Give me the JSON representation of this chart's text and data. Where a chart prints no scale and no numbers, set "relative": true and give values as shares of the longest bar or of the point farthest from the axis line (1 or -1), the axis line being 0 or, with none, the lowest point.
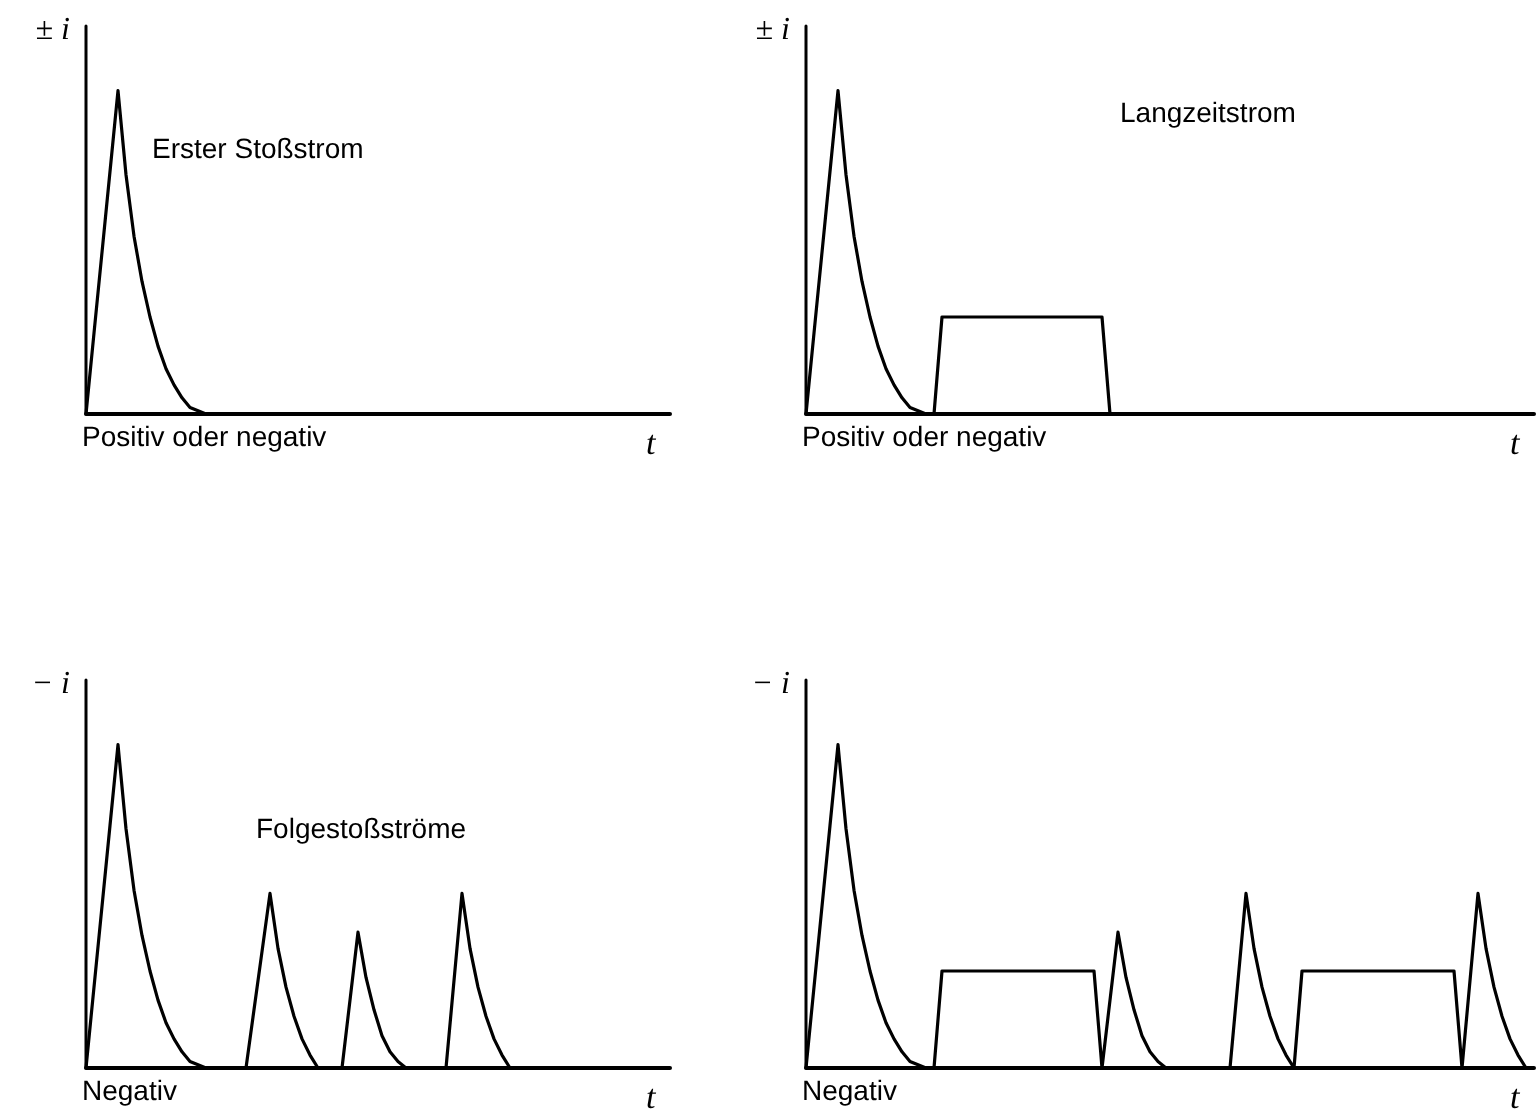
{
  "chart_data": [
    {
      "type": "line",
      "relative": true,
      "color": "#000000",
      "xlabel": "t",
      "ylabel": "± i",
      "annotations": [
        "Erster Stoßstrom",
        "Positiv oder negativ"
      ],
      "categories": [
        null,
        null,
        null,
        null,
        null,
        null,
        null,
        null,
        null,
        null,
        null,
        null,
        null,
        null,
        null,
        null,
        null,
        null,
        null,
        null,
        null,
        null,
        null,
        null,
        null,
        null,
        null,
        null,
        null,
        null,
        null,
        null,
        null,
        null,
        null,
        null,
        null,
        null,
        null,
        null,
        null,
        null,
        null,
        null,
        null,
        null,
        null,
        null,
        null,
        null,
        null,
        null,
        null,
        null,
        null,
        null,
        null,
        null,
        null,
        null,
        null,
        null,
        null,
        null,
        null,
        null,
        null,
        null,
        null,
        null,
        null,
        null,
        null,
        null
      ],
      "values": [
        0,
        0.25,
        0.5,
        0.75,
        1,
        0.74,
        0.55,
        0.41,
        0.3,
        0.21,
        0.14,
        0.09,
        0.05,
        0.02,
        0.01,
        0,
        0,
        0,
        0,
        0,
        0,
        0,
        0,
        0,
        0,
        0,
        0,
        0,
        0,
        0,
        0,
        0,
        0,
        0,
        0,
        0,
        0,
        0,
        0,
        0,
        0,
        0,
        0,
        0,
        0,
        0,
        0,
        0,
        0,
        0,
        0,
        0,
        0,
        0,
        0,
        0,
        0,
        0,
        0,
        0,
        0,
        0,
        0,
        0,
        0,
        0,
        0,
        0,
        0,
        0,
        0,
        0,
        0,
        0
      ]
    },
    {
      "type": "line",
      "relative": true,
      "color": "#000000",
      "xlabel": "t",
      "ylabel": "± i",
      "annotations": [
        "Langzeitstrom",
        "Positiv oder negativ"
      ],
      "categories": [
        null,
        null,
        null,
        null,
        null,
        null,
        null,
        null,
        null,
        null,
        null,
        null,
        null,
        null,
        null,
        null,
        null,
        null,
        null,
        null,
        null,
        null,
        null,
        null,
        null,
        null,
        null,
        null,
        null,
        null,
        null,
        null,
        null,
        null,
        null,
        null,
        null,
        null,
        null,
        null,
        null,
        null,
        null,
        null,
        null,
        null,
        null,
        null,
        null,
        null,
        null,
        null,
        null,
        null,
        null,
        null,
        null,
        null,
        null,
        null,
        null,
        null,
        null,
        null,
        null,
        null,
        null,
        null,
        null,
        null,
        null,
        null,
        null,
        null,
        null,
        null,
        null,
        null,
        null,
        null,
        null,
        null,
        null,
        null,
        null,
        null,
        null,
        null,
        null,
        null,
        null,
        null
      ],
      "values": [
        0,
        0.25,
        0.5,
        0.75,
        1,
        0.74,
        0.55,
        0.41,
        0.3,
        0.21,
        0.14,
        0.09,
        0.05,
        0.02,
        0.01,
        0,
        0,
        0.3,
        0.3,
        0.3,
        0.3,
        0.3,
        0.3,
        0.3,
        0.3,
        0.3,
        0.3,
        0.3,
        0.3,
        0.3,
        0.3,
        0.3,
        0.3,
        0.3,
        0.3,
        0.3,
        0.3,
        0.3,
        0,
        0,
        0,
        0,
        0,
        0,
        0,
        0,
        0,
        0,
        0,
        0,
        0,
        0,
        0,
        0,
        0,
        0,
        0,
        0,
        0,
        0,
        0,
        0,
        0,
        0,
        0,
        0,
        0,
        0,
        0,
        0,
        0,
        0,
        0,
        0,
        0,
        0,
        0,
        0,
        0,
        0,
        0,
        0,
        0,
        0,
        0,
        0,
        0,
        0,
        0,
        0,
        0,
        0
      ]
    },
    {
      "type": "line",
      "relative": true,
      "color": "#000000",
      "xlabel": "t",
      "ylabel": "− i",
      "annotations": [
        "Folgestoßströme",
        "Negativ"
      ],
      "categories": [
        null,
        null,
        null,
        null,
        null,
        null,
        null,
        null,
        null,
        null,
        null,
        null,
        null,
        null,
        null,
        null,
        null,
        null,
        null,
        null,
        null,
        null,
        null,
        null,
        null,
        null,
        null,
        null,
        null,
        null,
        null,
        null,
        null,
        null,
        null,
        null,
        null,
        null,
        null,
        null,
        null,
        null,
        null,
        null,
        null,
        null,
        null,
        null,
        null,
        null,
        null,
        null,
        null,
        null,
        null,
        null,
        null,
        null,
        null,
        null,
        null,
        null,
        null,
        null,
        null,
        null,
        null,
        null,
        null,
        null,
        null,
        null,
        null,
        null
      ],
      "values": [
        0,
        0.25,
        0.5,
        0.75,
        1,
        0.74,
        0.55,
        0.41,
        0.3,
        0.21,
        0.14,
        0.09,
        0.05,
        0.02,
        0.01,
        0,
        0,
        0,
        0,
        0,
        0,
        0.18,
        0.36,
        0.54,
        0.37,
        0.25,
        0.16,
        0.09,
        0.04,
        0,
        0,
        0,
        0,
        0.21,
        0.42,
        0.28,
        0.18,
        0.1,
        0.05,
        0.02,
        0,
        0,
        0,
        0,
        0,
        0,
        0.27,
        0.54,
        0.37,
        0.25,
        0.16,
        0.09,
        0.04,
        0,
        0,
        0,
        0,
        0,
        0,
        0,
        0,
        0,
        0,
        0,
        0,
        0,
        0,
        0,
        0,
        0,
        0,
        0,
        0,
        0
      ]
    },
    {
      "type": "line",
      "relative": true,
      "color": "#000000",
      "xlabel": "t",
      "ylabel": "− i",
      "annotations": [
        "Negativ"
      ],
      "categories": [
        null,
        null,
        null,
        null,
        null,
        null,
        null,
        null,
        null,
        null,
        null,
        null,
        null,
        null,
        null,
        null,
        null,
        null,
        null,
        null,
        null,
        null,
        null,
        null,
        null,
        null,
        null,
        null,
        null,
        null,
        null,
        null,
        null,
        null,
        null,
        null,
        null,
        null,
        null,
        null,
        null,
        null,
        null,
        null,
        null,
        null,
        null,
        null,
        null,
        null,
        null,
        null,
        null,
        null,
        null,
        null,
        null,
        null,
        null,
        null,
        null,
        null,
        null,
        null,
        null,
        null,
        null,
        null,
        null,
        null,
        null,
        null,
        null,
        null,
        null,
        null,
        null,
        null,
        null,
        null,
        null,
        null,
        null,
        null,
        null,
        null,
        null,
        null,
        null,
        null,
        null,
        null
      ],
      "values": [
        0,
        0.25,
        0.5,
        0.75,
        1,
        0.74,
        0.55,
        0.41,
        0.3,
        0.21,
        0.14,
        0.09,
        0.05,
        0.02,
        0.01,
        0,
        0,
        0.3,
        0.3,
        0.3,
        0.3,
        0.3,
        0.3,
        0.3,
        0.3,
        0.3,
        0.3,
        0.3,
        0.3,
        0.3,
        0.3,
        0.3,
        0.3,
        0.3,
        0.3,
        0.3,
        0.3,
        0,
        0.21,
        0.42,
        0.28,
        0.18,
        0.1,
        0.05,
        0.02,
        0,
        0,
        0,
        0,
        0,
        0,
        0,
        0,
        0,
        0.27,
        0.54,
        0.37,
        0.25,
        0.16,
        0.09,
        0.04,
        0,
        0.3,
        0.3,
        0.3,
        0.3,
        0.3,
        0.3,
        0.3,
        0.3,
        0.3,
        0.3,
        0.3,
        0.3,
        0.3,
        0.3,
        0.3,
        0.3,
        0.3,
        0.3,
        0.3,
        0.3,
        0,
        0.27,
        0.54,
        0.37,
        0.25,
        0.16,
        0.09,
        0.04,
        0,
        0
      ]
    }
  ]
}
